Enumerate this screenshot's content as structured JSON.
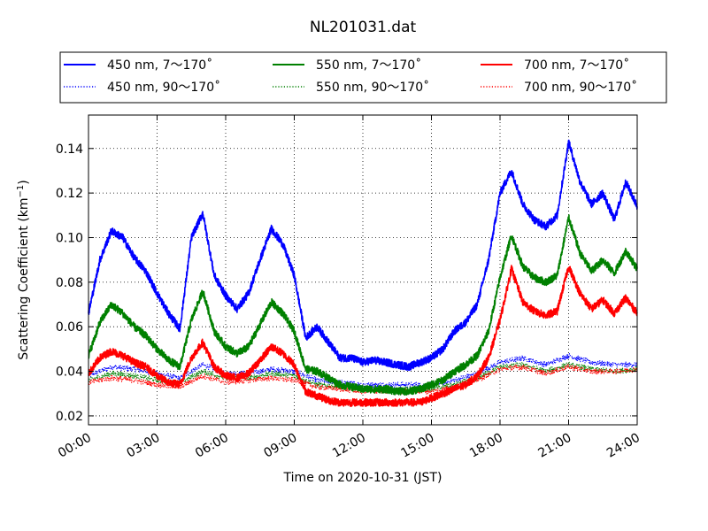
{
  "chart_data": {
    "type": "line",
    "title": "NL201031.dat",
    "xlabel": "Time on 2020-10-31 (JST)",
    "ylabel_main": "Scattering Coefficient (km",
    "ylabel_sup": "−1",
    "ylabel_close": ")",
    "xlim": [
      "00:00",
      "24:00"
    ],
    "ylim": [
      0.016,
      0.155
    ],
    "x_ticks": [
      "00:00",
      "03:00",
      "06:00",
      "09:00",
      "12:00",
      "15:00",
      "18:00",
      "21:00",
      "24:00"
    ],
    "y_ticks": [
      "0.02",
      "0.04",
      "0.06",
      "0.08",
      "0.10",
      "0.12",
      "0.14"
    ],
    "grid": true,
    "legend_position": "top, above plot",
    "series": [
      {
        "name": "450 nm, 7～170˚",
        "color": "#0000ff",
        "style": "solid",
        "x": [
          "00:00",
          "00:30",
          "01:00",
          "01:30",
          "02:00",
          "02:30",
          "03:00",
          "03:30",
          "04:00",
          "04:30",
          "05:00",
          "05:30",
          "06:00",
          "06:30",
          "07:00",
          "07:30",
          "08:00",
          "08:30",
          "09:00",
          "09:30",
          "10:00",
          "10:30",
          "11:00",
          "11:30",
          "12:00",
          "12:30",
          "13:00",
          "13:30",
          "14:00",
          "14:30",
          "15:00",
          "15:30",
          "16:00",
          "16:30",
          "17:00",
          "17:30",
          "18:00",
          "18:30",
          "19:00",
          "19:30",
          "20:00",
          "20:30",
          "21:00",
          "21:30",
          "22:00",
          "22:30",
          "23:00",
          "23:30",
          "24:00"
        ],
        "y": [
          0.066,
          0.09,
          0.103,
          0.1,
          0.091,
          0.085,
          0.075,
          0.066,
          0.059,
          0.1,
          0.111,
          0.083,
          0.074,
          0.068,
          0.075,
          0.09,
          0.104,
          0.097,
          0.083,
          0.055,
          0.06,
          0.053,
          0.046,
          0.046,
          0.044,
          0.045,
          0.044,
          0.043,
          0.042,
          0.044,
          0.046,
          0.05,
          0.058,
          0.062,
          0.07,
          0.09,
          0.12,
          0.13,
          0.115,
          0.108,
          0.105,
          0.11,
          0.143,
          0.125,
          0.115,
          0.12,
          0.108,
          0.125,
          0.114
        ]
      },
      {
        "name": "450 nm, 90～170˚",
        "color": "#0000ff",
        "style": "dotted",
        "x": [
          "00:00",
          "01:00",
          "02:00",
          "03:00",
          "04:00",
          "05:00",
          "06:00",
          "07:00",
          "08:00",
          "09:00",
          "10:00",
          "11:00",
          "12:00",
          "13:00",
          "14:00",
          "15:00",
          "16:00",
          "17:00",
          "18:00",
          "19:00",
          "20:00",
          "21:00",
          "22:00",
          "23:00",
          "24:00"
        ],
        "y": [
          0.038,
          0.042,
          0.041,
          0.039,
          0.037,
          0.043,
          0.039,
          0.039,
          0.041,
          0.04,
          0.036,
          0.035,
          0.034,
          0.034,
          0.034,
          0.034,
          0.036,
          0.039,
          0.044,
          0.046,
          0.043,
          0.047,
          0.044,
          0.043,
          0.043
        ]
      },
      {
        "name": "550 nm, 7～170˚",
        "color": "#008000",
        "style": "solid",
        "x": [
          "00:00",
          "00:30",
          "01:00",
          "01:30",
          "02:00",
          "02:30",
          "03:00",
          "03:30",
          "04:00",
          "04:30",
          "05:00",
          "05:30",
          "06:00",
          "06:30",
          "07:00",
          "07:30",
          "08:00",
          "08:30",
          "09:00",
          "09:30",
          "10:00",
          "10:30",
          "11:00",
          "11:30",
          "12:00",
          "12:30",
          "13:00",
          "13:30",
          "14:00",
          "14:30",
          "15:00",
          "15:30",
          "16:00",
          "16:30",
          "17:00",
          "17:30",
          "18:00",
          "18:30",
          "19:00",
          "19:30",
          "20:00",
          "20:30",
          "21:00",
          "21:30",
          "22:00",
          "22:30",
          "23:00",
          "23:30",
          "24:00"
        ],
        "y": [
          0.047,
          0.062,
          0.07,
          0.066,
          0.06,
          0.056,
          0.05,
          0.045,
          0.042,
          0.063,
          0.076,
          0.058,
          0.051,
          0.048,
          0.051,
          0.061,
          0.071,
          0.066,
          0.058,
          0.041,
          0.04,
          0.037,
          0.034,
          0.033,
          0.032,
          0.032,
          0.032,
          0.031,
          0.031,
          0.032,
          0.034,
          0.036,
          0.04,
          0.043,
          0.047,
          0.058,
          0.082,
          0.101,
          0.087,
          0.082,
          0.08,
          0.083,
          0.109,
          0.093,
          0.085,
          0.09,
          0.084,
          0.094,
          0.086
        ]
      },
      {
        "name": "550 nm, 90～170˚",
        "color": "#008000",
        "style": "dotted",
        "x": [
          "00:00",
          "01:00",
          "02:00",
          "03:00",
          "04:00",
          "05:00",
          "06:00",
          "07:00",
          "08:00",
          "09:00",
          "10:00",
          "11:00",
          "12:00",
          "13:00",
          "14:00",
          "15:00",
          "16:00",
          "17:00",
          "18:00",
          "19:00",
          "20:00",
          "21:00",
          "22:00",
          "23:00",
          "24:00"
        ],
        "y": [
          0.036,
          0.039,
          0.038,
          0.036,
          0.035,
          0.04,
          0.037,
          0.037,
          0.039,
          0.038,
          0.034,
          0.033,
          0.032,
          0.032,
          0.032,
          0.032,
          0.034,
          0.037,
          0.042,
          0.043,
          0.04,
          0.043,
          0.041,
          0.04,
          0.041
        ]
      },
      {
        "name": "700 nm, 7～170˚",
        "color": "#ff0000",
        "style": "solid",
        "x": [
          "00:00",
          "00:30",
          "01:00",
          "01:30",
          "02:00",
          "02:30",
          "03:00",
          "03:30",
          "04:00",
          "04:30",
          "05:00",
          "05:30",
          "06:00",
          "06:30",
          "07:00",
          "07:30",
          "08:00",
          "08:30",
          "09:00",
          "09:30",
          "10:00",
          "10:30",
          "11:00",
          "11:30",
          "12:00",
          "12:30",
          "13:00",
          "13:30",
          "14:00",
          "14:30",
          "15:00",
          "15:30",
          "16:00",
          "16:30",
          "17:00",
          "17:30",
          "18:00",
          "18:30",
          "19:00",
          "19:30",
          "20:00",
          "20:30",
          "21:00",
          "21:30",
          "22:00",
          "22:30",
          "23:00",
          "23:30",
          "24:00"
        ],
        "y": [
          0.039,
          0.046,
          0.049,
          0.047,
          0.044,
          0.042,
          0.038,
          0.035,
          0.034,
          0.046,
          0.053,
          0.042,
          0.038,
          0.037,
          0.039,
          0.045,
          0.051,
          0.048,
          0.043,
          0.031,
          0.029,
          0.027,
          0.026,
          0.026,
          0.026,
          0.026,
          0.026,
          0.026,
          0.026,
          0.026,
          0.028,
          0.03,
          0.032,
          0.034,
          0.038,
          0.046,
          0.063,
          0.086,
          0.071,
          0.067,
          0.065,
          0.067,
          0.087,
          0.075,
          0.068,
          0.072,
          0.066,
          0.073,
          0.066
        ]
      },
      {
        "name": "700 nm, 90～170˚",
        "color": "#ff0000",
        "style": "dotted",
        "x": [
          "00:00",
          "01:00",
          "02:00",
          "03:00",
          "04:00",
          "05:00",
          "06:00",
          "07:00",
          "08:00",
          "09:00",
          "10:00",
          "11:00",
          "12:00",
          "13:00",
          "14:00",
          "15:00",
          "16:00",
          "17:00",
          "18:00",
          "19:00",
          "20:00",
          "21:00",
          "22:00",
          "23:00",
          "24:00"
        ],
        "y": [
          0.035,
          0.037,
          0.036,
          0.034,
          0.033,
          0.038,
          0.035,
          0.036,
          0.037,
          0.036,
          0.033,
          0.032,
          0.031,
          0.031,
          0.031,
          0.031,
          0.033,
          0.036,
          0.041,
          0.042,
          0.039,
          0.042,
          0.04,
          0.04,
          0.041
        ]
      }
    ]
  }
}
